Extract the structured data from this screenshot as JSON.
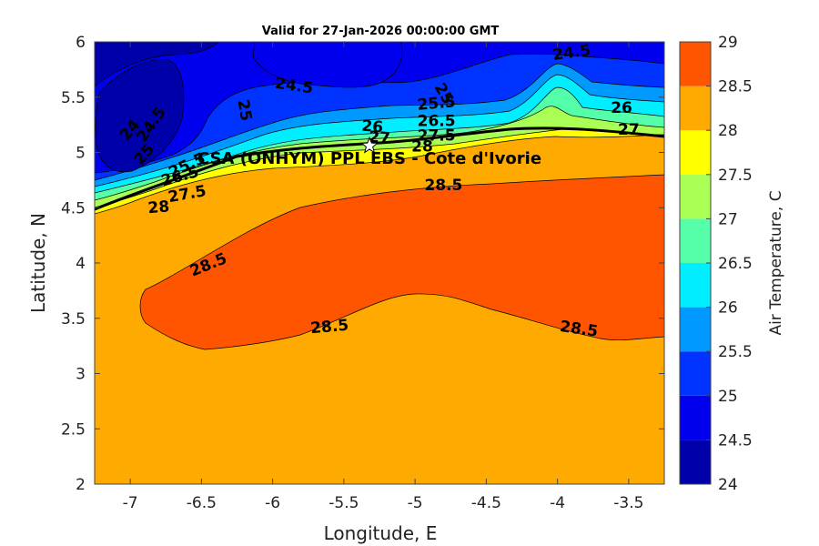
{
  "chart_data": {
    "type": "contour",
    "title": "Valid for 27-Jan-2026 00:00:00 GMT",
    "xlabel": "Longitude, E",
    "ylabel": "Latitude, N",
    "xlim": [
      -7.25,
      -3.25
    ],
    "ylim": [
      2,
      6
    ],
    "x_ticks": [
      "-7",
      "-6.5",
      "-6",
      "-5.5",
      "-5",
      "-4.5",
      "-4",
      "-3.5"
    ],
    "x_tick_values": [
      -7,
      -6.5,
      -6,
      -5.5,
      -5,
      -4.5,
      -4,
      -3.5
    ],
    "y_ticks": [
      "2",
      "2.5",
      "3",
      "3.5",
      "4",
      "4.5",
      "5",
      "5.5",
      "6"
    ],
    "y_tick_values": [
      2,
      2.5,
      3,
      3.5,
      4,
      4.5,
      5,
      5.5,
      6
    ],
    "colorbar": {
      "label": "Air Temperature, C",
      "levels": [
        24,
        24.5,
        25,
        25.5,
        26,
        26.5,
        27,
        27.5,
        28,
        28.5,
        29
      ],
      "tick_labels": [
        "24",
        "24.5",
        "25",
        "25.5",
        "26",
        "26.5",
        "27",
        "27.5",
        "28",
        "28.5",
        "29"
      ],
      "colors": [
        "#0000aa",
        "#0000ee",
        "#0033ff",
        "#0099ff",
        "#00eeff",
        "#55ffaa",
        "#aaff55",
        "#ffff00",
        "#ffaa00",
        "#ff5500",
        "#ff0000"
      ]
    },
    "site": {
      "name": "CSA (ONHYM) PPL EBS - Cote d'Ivorie",
      "lon": -5.32,
      "lat": 5.06
    },
    "contour_labels": [
      {
        "text": "24.5",
        "lon": -3.9,
        "lat": 5.9,
        "rot": -8
      },
      {
        "text": "24.5",
        "lon": -5.85,
        "lat": 5.6,
        "rot": 8
      },
      {
        "text": "25",
        "lon": -6.2,
        "lat": 5.38,
        "rot": 80
      },
      {
        "text": "25",
        "lon": -4.8,
        "lat": 5.53,
        "rot": 60
      },
      {
        "text": "25.5",
        "lon": -4.85,
        "lat": 5.44,
        "rot": -5
      },
      {
        "text": "26",
        "lon": -3.55,
        "lat": 5.4,
        "rot": 0
      },
      {
        "text": "26",
        "lon": -5.3,
        "lat": 5.23,
        "rot": 5
      },
      {
        "text": "26.5",
        "lon": -4.85,
        "lat": 5.28,
        "rot": 0
      },
      {
        "text": "27",
        "lon": -3.5,
        "lat": 5.2,
        "rot": 0
      },
      {
        "text": "27",
        "lon": -5.25,
        "lat": 5.13,
        "rot": 5
      },
      {
        "text": "27.5",
        "lon": -4.85,
        "lat": 5.15,
        "rot": 0
      },
      {
        "text": "28",
        "lon": -4.95,
        "lat": 5.05,
        "rot": 0
      },
      {
        "text": "24",
        "lon": -7.0,
        "lat": 5.2,
        "rot": -50
      },
      {
        "text": "24.5",
        "lon": -6.85,
        "lat": 5.25,
        "rot": -55
      },
      {
        "text": "25",
        "lon": -6.9,
        "lat": 4.98,
        "rot": -50
      },
      {
        "text": "25.5",
        "lon": -6.6,
        "lat": 4.88,
        "rot": -25
      },
      {
        "text": "26.5",
        "lon": -6.65,
        "lat": 4.78,
        "rot": -15
      },
      {
        "text": "27.5",
        "lon": -6.6,
        "lat": 4.62,
        "rot": -10
      },
      {
        "text": "28",
        "lon": -6.8,
        "lat": 4.5,
        "rot": -5
      },
      {
        "text": "28.5",
        "lon": -4.8,
        "lat": 4.7,
        "rot": 0
      },
      {
        "text": "28.5",
        "lon": -6.45,
        "lat": 3.98,
        "rot": -22
      },
      {
        "text": "28.5",
        "lon": -5.6,
        "lat": 3.42,
        "rot": -5
      },
      {
        "text": "28.5",
        "lon": -3.85,
        "lat": 3.4,
        "rot": 8
      }
    ]
  }
}
